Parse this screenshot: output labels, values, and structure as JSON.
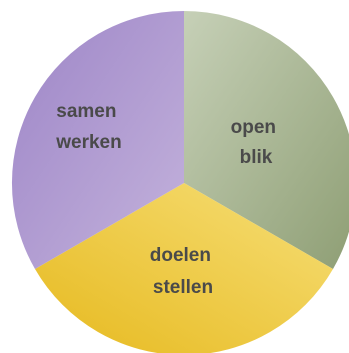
{
  "diagram": {
    "segments": [
      {
        "id": "open-blik",
        "label_lines": [
          "open",
          "blik"
        ],
        "color_light": "#c6d0b7",
        "color_dark": "#8e9e74"
      },
      {
        "id": "doelen-stellen",
        "label_lines": [
          "doelen",
          "stellen"
        ],
        "color_light": "#f7df78",
        "color_dark": "#e6b91e"
      },
      {
        "id": "samen-werken",
        "label_lines": [
          "samen",
          "werken"
        ],
        "color_light": "#c4b3dc",
        "color_dark": "#9d85c7"
      }
    ]
  }
}
